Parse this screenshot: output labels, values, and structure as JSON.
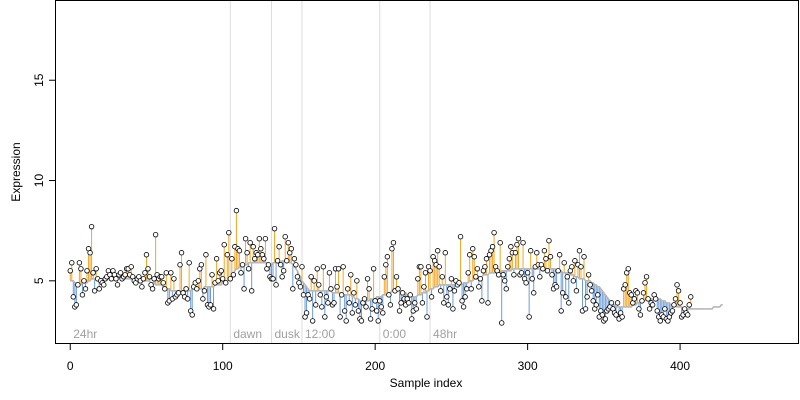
{
  "chart_data": {
    "type": "scatter",
    "xlabel": "Sample index",
    "ylabel": "Expression",
    "xlim": [
      -10,
      478
    ],
    "ylim": [
      1.85,
      19.0
    ],
    "xticks": [
      0,
      100,
      200,
      300,
      400
    ],
    "yticks": [
      5,
      10,
      15
    ],
    "grid": false,
    "colors": {
      "above": "#f5a623",
      "below": "#6c9bd8",
      "smooth": "#b8b8b8",
      "point": "#000000",
      "divider": "#dcdcdc"
    },
    "regions": [
      {
        "label": "24hr",
        "start": 0
      },
      {
        "label": "dawn",
        "start": 105
      },
      {
        "label": "dusk",
        "start": 132
      },
      {
        "label": "12:00",
        "start": 152
      },
      {
        "label": "0:00",
        "start": 203
      },
      {
        "label": "48hr",
        "start": 236
      }
    ],
    "y": [
      5.5,
      5.9,
      4.2,
      3.7,
      3.8,
      4.8,
      5.9,
      5.6,
      4.3,
      5.0,
      4.6,
      5.5,
      6.6,
      6.4,
      7.7,
      5.4,
      4.5,
      5.6,
      5.1,
      4.6,
      5.0,
      4.9,
      4.8,
      5.1,
      5.2,
      5.5,
      5.3,
      5.1,
      5.5,
      5.3,
      5.1,
      4.8,
      5.3,
      5.4,
      5.1,
      5.2,
      5.3,
      5.6,
      5.6,
      5.3,
      5.7,
      5.2,
      5.0,
      4.9,
      5.1,
      5.2,
      5.0,
      4.7,
      5.1,
      5.4,
      6.3,
      5.6,
      5.2,
      4.8,
      4.6,
      5.1,
      7.3,
      5.3,
      5.1,
      5.2,
      5.2,
      4.9,
      4.6,
      5.4,
      3.9,
      4.0,
      5.4,
      4.1,
      5.1,
      4.2,
      4.3,
      4.4,
      5.8,
      6.4,
      4.4,
      4.2,
      4.6,
      4.1,
      5.9,
      3.5,
      3.3,
      4.7,
      4.9,
      4.6,
      5.0,
      5.6,
      5.8,
      4.1,
      4.5,
      6.3,
      3.8,
      3.7,
      3.8,
      5.3,
      3.6,
      4.9,
      6.1,
      5.0,
      5.4,
      5.5,
      5.1,
      6.8,
      4.9,
      6.3,
      7.4,
      5.1,
      6.1,
      5.3,
      6.7,
      8.5,
      6.6,
      6.5,
      5.4,
      5.8,
      4.6,
      7.1,
      6.4,
      5.6,
      6.9,
      4.5,
      6.7,
      6.1,
      6.4,
      6.3,
      7.1,
      6.6,
      6.3,
      6.1,
      7.1,
      5.6,
      5.8,
      5.2,
      5.1,
      5.1,
      7.6,
      4.8,
      6.0,
      6.7,
      5.8,
      5.2,
      5.5,
      7.2,
      6.0,
      6.9,
      6.4,
      6.6,
      4.6,
      6.1,
      5.8,
      5.2,
      4.9,
      4.7,
      5.7,
      4.3,
      3.2,
      3.4,
      4.3,
      4.1,
      5.2,
      3.0,
      5.0,
      3.8,
      5.6,
      4.8,
      4.3,
      3.7,
      5.7,
      3.2,
      4.2,
      3.9,
      5.4,
      4.6,
      3.8,
      3.9,
      5.6,
      4.7,
      5.6,
      3.2,
      4.3,
      5.7,
      3.5,
      3.0,
      4.6,
      3.9,
      5.3,
      3.4,
      4.4,
      3.8,
      5.0,
      3.5,
      3.1,
      3.0,
      3.9,
      4.1,
      3.7,
      5.1,
      4.6,
      3.1,
      3.6,
      5.6,
      4.0,
      3.5,
      3.0,
      4.0,
      3.7,
      3.4,
      5.2,
      5.8,
      6.2,
      4.3,
      3.8,
      6.6,
      6.9,
      4.5,
      5.2,
      4.6,
      3.5,
      3.9,
      4.4,
      4.1,
      3.8,
      4.1,
      3.9,
      4.3,
      3.1,
      3.5,
      3.9,
      3.6,
      5.1,
      5.7,
      5.7,
      3.9,
      4.7,
      5.4,
      3.2,
      5.7,
      5.5,
      4.2,
      6.2,
      6.0,
      5.8,
      6.5,
      5.7,
      4.5,
      5.2,
      3.9,
      6.4,
      4.2,
      3.8,
      4.6,
      5.1,
      3.6,
      4.5,
      5.0,
      4.8,
      4.9,
      7.2,
      4.0,
      3.7,
      4.2,
      4.6,
      5.4,
      6.3,
      4.6,
      6.6,
      6.2,
      5.2,
      5.6,
      4.7,
      5.1,
      4.0,
      5.5,
      5.7,
      6.1,
      3.9,
      6.3,
      6.5,
      6.7,
      7.4,
      5.7,
      5.5,
      5.3,
      6.9,
      2.9,
      5.3,
      5.0,
      4.6,
      5.7,
      6.1,
      6.7,
      6.4,
      5.3,
      6.4,
      6.8,
      7.1,
      5.3,
      5.4,
      6.9,
      5.1,
      4.9,
      5.4,
      3.2,
      6.5,
      5.1,
      4.4,
      5.7,
      6.4,
      5.8,
      5.2,
      5.8,
      5.6,
      6.5,
      6.1,
      5.5,
      7.0,
      6.2,
      5.3,
      4.6,
      4.8,
      4.7,
      5.5,
      6.3,
      3.5,
      4.4,
      5.9,
      4.2,
      5.2,
      3.9,
      5.5,
      5.7,
      5.0,
      6.0,
      4.5,
      5.8,
      6.5,
      5.7,
      3.5,
      6.2,
      3.6,
      4.2,
      5.3,
      4.8,
      4.5,
      4.0,
      3.6,
      3.8,
      4.3,
      3.2,
      3.5,
      3.3,
      3.0,
      3.1,
      3.5,
      3.6,
      3.7,
      3.9,
      3.6,
      3.4,
      3.3,
      3.9,
      3.1,
      3.4,
      3.2,
      4.6,
      4.8,
      5.4,
      5.6,
      4.4,
      4.3,
      3.9,
      4.1,
      4.5,
      4.4,
      3.6,
      3.3,
      4.0,
      4.4,
      4.9,
      5.2,
      4.1,
      3.6,
      3.9,
      3.8,
      4.3,
      4.1,
      3.5,
      3.2,
      3.0,
      3.3,
      3.2,
      3.6,
      3.1,
      3.0,
      3.2,
      3.4,
      3.5,
      3.8,
      4.1,
      4.8,
      4.5,
      3.9,
      3.2,
      3.3,
      3.6,
      3.4,
      3.3,
      3.8,
      4.2
    ],
    "smooth": [
      5.0,
      5.0,
      5.0,
      4.9,
      4.9,
      4.9,
      4.8,
      4.8,
      4.9,
      4.9,
      4.9,
      4.9,
      5.0,
      5.0,
      5.1,
      5.1,
      5.1,
      5.1,
      5.1,
      5.1,
      5.1,
      5.1,
      5.1,
      5.1,
      5.1,
      5.1,
      5.1,
      5.1,
      5.2,
      5.2,
      5.2,
      5.2,
      5.2,
      5.1,
      5.1,
      5.1,
      5.1,
      5.1,
      5.1,
      5.1,
      5.1,
      5.1,
      5.1,
      5.1,
      5.1,
      5.1,
      5.1,
      5.1,
      5.0,
      5.0,
      5.0,
      5.0,
      5.0,
      4.9,
      4.9,
      4.9,
      4.8,
      4.8,
      4.8,
      4.8,
      4.8,
      4.7,
      4.7,
      4.6,
      4.6,
      4.6,
      4.5,
      4.5,
      4.5,
      4.5,
      4.5,
      4.5,
      4.5,
      4.5,
      4.5,
      4.5,
      4.5,
      4.5,
      4.5,
      4.5,
      4.6,
      4.6,
      4.6,
      4.6,
      4.6,
      4.6,
      4.6,
      4.6,
      4.7,
      4.7,
      4.7,
      4.7,
      4.7,
      4.7,
      4.7,
      4.8,
      4.8,
      4.8,
      4.8,
      4.8,
      4.9,
      4.9,
      4.9,
      5.0,
      5.1,
      5.2,
      5.3,
      5.4,
      5.5,
      5.6,
      5.6,
      5.7,
      5.7,
      5.7,
      5.8,
      5.8,
      5.8,
      5.9,
      5.9,
      5.9,
      5.9,
      5.9,
      5.9,
      5.9,
      5.9,
      5.9,
      5.9,
      5.9,
      5.9,
      5.9,
      5.9,
      5.8,
      5.8,
      5.9,
      5.9,
      5.9,
      5.9,
      5.9,
      5.9,
      6.0,
      6.0,
      6.0,
      6.0,
      6.0,
      5.9,
      5.9,
      5.8,
      5.7,
      5.6,
      5.5,
      5.3,
      5.2,
      5.0,
      4.9,
      4.8,
      4.7,
      4.6,
      4.5,
      4.5,
      4.5,
      4.5,
      4.5,
      4.5,
      4.5,
      4.5,
      4.5,
      4.5,
      4.5,
      4.5,
      4.5,
      4.5,
      4.5,
      4.4,
      4.4,
      4.4,
      4.4,
      4.4,
      4.4,
      4.3,
      4.3,
      4.3,
      4.3,
      4.3,
      4.3,
      4.3,
      4.2,
      4.2,
      4.1,
      4.1,
      4.1,
      4.0,
      4.0,
      4.0,
      4.0,
      4.0,
      4.0,
      4.0,
      4.1,
      4.1,
      4.1,
      4.1,
      4.2,
      4.2,
      4.2,
      4.2,
      4.3,
      4.3,
      4.3,
      4.4,
      4.4,
      4.4,
      4.5,
      4.5,
      4.5,
      4.5,
      4.5,
      4.5,
      4.5,
      4.5,
      4.4,
      4.4,
      4.3,
      4.3,
      4.3,
      4.2,
      4.2,
      4.2,
      4.2,
      4.3,
      4.3,
      4.3,
      4.4,
      4.4,
      4.4,
      4.5,
      4.5,
      4.6,
      4.6,
      4.6,
      4.7,
      4.7,
      4.7,
      4.8,
      4.8,
      4.8,
      4.8,
      4.8,
      4.8,
      4.8,
      4.8,
      4.8,
      4.8,
      4.8,
      4.8,
      4.8,
      4.8,
      4.8,
      4.8,
      4.9,
      4.9,
      4.9,
      4.9,
      5.0,
      5.0,
      5.0,
      5.1,
      5.1,
      5.1,
      5.2,
      5.2,
      5.2,
      5.3,
      5.3,
      5.3,
      5.3,
      5.4,
      5.4,
      5.4,
      5.4,
      5.4,
      5.4,
      5.4,
      5.4,
      5.5,
      5.5,
      5.5,
      5.5,
      5.5,
      5.5,
      5.5,
      5.6,
      5.6,
      5.6,
      5.6,
      5.6,
      5.6,
      5.6,
      5.6,
      5.6,
      5.6,
      5.6,
      5.6,
      5.6,
      5.6,
      5.6,
      5.6,
      5.6,
      5.6,
      5.6,
      5.6,
      5.6,
      5.6,
      5.6,
      5.6,
      5.6,
      5.6,
      5.6,
      5.6,
      5.6,
      5.5,
      5.5,
      5.5,
      5.5,
      5.4,
      5.4,
      5.4,
      5.4,
      5.3,
      5.3,
      5.3,
      5.3,
      5.2,
      5.2,
      5.2,
      5.1,
      5.1,
      5.1,
      5.1,
      5.0,
      5.0,
      5.0,
      5.0,
      4.9,
      4.9,
      4.8,
      4.8,
      4.7,
      4.7,
      4.6,
      4.5,
      4.4,
      4.3,
      4.2,
      4.1,
      4.0,
      3.9,
      3.8,
      3.8,
      3.7,
      3.7,
      3.7,
      3.7,
      3.7,
      3.7,
      3.7,
      3.7,
      3.7,
      3.7,
      3.7,
      3.8,
      3.8,
      3.8,
      3.9,
      3.9,
      3.9,
      4.0,
      4.0,
      4.0,
      4.1,
      4.1,
      4.1,
      4.1,
      4.1,
      4.1,
      4.1,
      4.1,
      4.1,
      4.1,
      4.0,
      4.0,
      4.0,
      3.9,
      3.9,
      3.9,
      3.8,
      3.8,
      3.8,
      3.8,
      3.7,
      3.7,
      3.7,
      3.7,
      3.6,
      3.6,
      3.6,
      3.6,
      3.6,
      3.6,
      3.6,
      3.6,
      3.6,
      3.6,
      3.6,
      3.6,
      3.6,
      3.6,
      3.6,
      3.6,
      3.6,
      3.6,
      3.6,
      3.6,
      3.7,
      3.7,
      3.7,
      3.7,
      3.7,
      3.8,
      3.8
    ]
  }
}
